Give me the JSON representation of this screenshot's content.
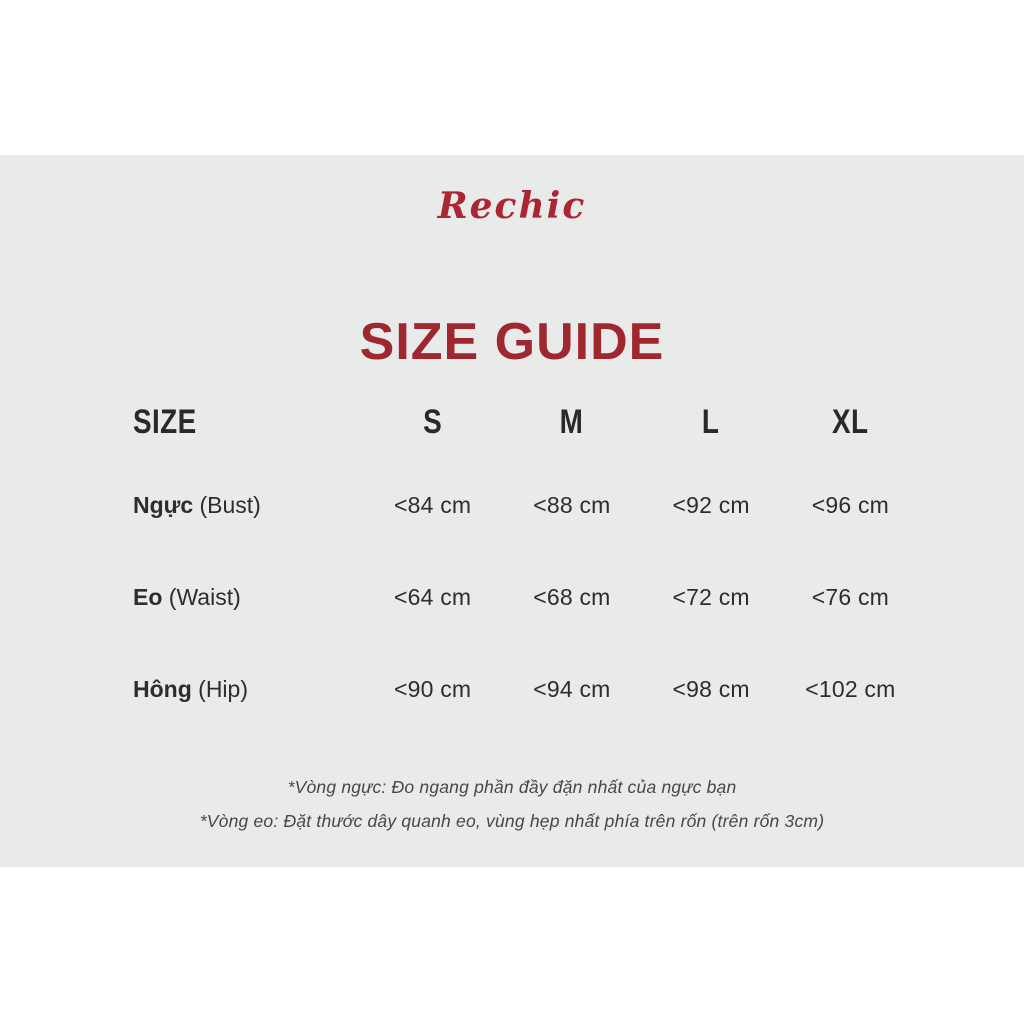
{
  "brand": {
    "logo_text": "Rechic"
  },
  "title": "SIZE GUIDE",
  "colors": {
    "title_red": "#9e2730",
    "logo_red": "#aa2632",
    "background_gray": "#e9eaea",
    "text_dark": "#2b2d2f"
  },
  "table": {
    "header": {
      "label": "SIZE",
      "sizes": [
        "S",
        "M",
        "L",
        "XL"
      ]
    },
    "rows": [
      {
        "label_vi": "Ngực",
        "label_en": "(Bust)",
        "values": [
          "<84 cm",
          "<88 cm",
          "<92 cm",
          "<96 cm"
        ]
      },
      {
        "label_vi": "Eo",
        "label_en": "(Waist)",
        "values": [
          "<64 cm",
          "<68 cm",
          "<72 cm",
          "<76 cm"
        ]
      },
      {
        "label_vi": "Hông",
        "label_en": "(Hip)",
        "values": [
          "<90 cm",
          "<94 cm",
          "<98 cm",
          "<102 cm"
        ]
      }
    ]
  },
  "footnotes": [
    "*Vòng ngực: Đo ngang phần đầy đặn nhất của ngực bạn",
    "*Vòng eo: Đặt thước dây quanh eo, vùng hẹp nhất phía trên rốn (trên rốn 3cm)"
  ]
}
